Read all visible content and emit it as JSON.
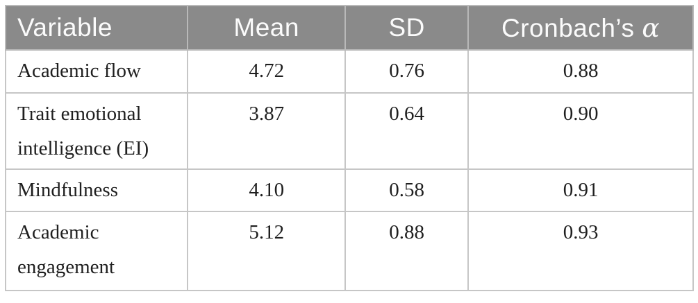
{
  "colors": {
    "page_bg": "#ffffff",
    "header_bg": "#8a8a8a",
    "header_text": "#fbfbfb",
    "body_text": "#1f1f1f",
    "border": "#c6c6c6"
  },
  "table": {
    "header": {
      "variable": "Variable",
      "mean": "Mean",
      "sd": "SD",
      "cronbach_prefix": "Cronbach’s ",
      "cronbach_symbol": "α"
    },
    "rows": [
      {
        "variable": "Academic flow",
        "mean": "4.72",
        "sd": "0.76",
        "cronbach_alpha": "0.88"
      },
      {
        "variable": "Trait emotional intelligence (EI)",
        "mean": "3.87",
        "sd": "0.64",
        "cronbach_alpha": "0.90"
      },
      {
        "variable": "Mindfulness",
        "mean": "4.10",
        "sd": "0.58",
        "cronbach_alpha": "0.91"
      },
      {
        "variable": "Academic engagement",
        "mean": "5.12",
        "sd": "0.88",
        "cronbach_alpha": "0.93"
      }
    ]
  }
}
